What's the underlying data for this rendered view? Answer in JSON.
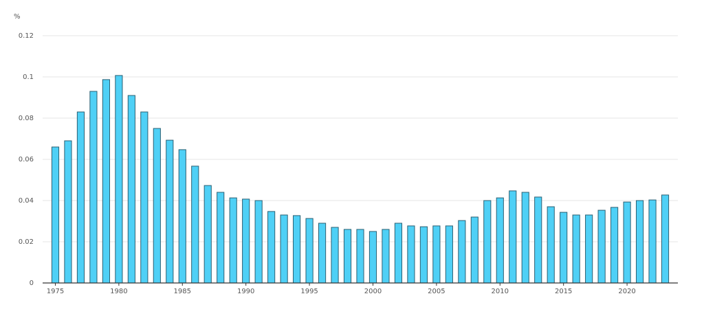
{
  "chart_data": {
    "type": "bar",
    "y_label": "%",
    "x": [
      1975,
      1976,
      1977,
      1978,
      1979,
      1980,
      1981,
      1982,
      1983,
      1984,
      1985,
      1986,
      1987,
      1988,
      1989,
      1990,
      1991,
      1992,
      1993,
      1994,
      1995,
      1996,
      1997,
      1998,
      1999,
      2000,
      2001,
      2002,
      2003,
      2004,
      2005,
      2006,
      2007,
      2008,
      2009,
      2010,
      2011,
      2012,
      2013,
      2014,
      2015,
      2016,
      2017,
      2018,
      2019,
      2020,
      2021,
      2022,
      2023
    ],
    "values": [
      0.066,
      0.069,
      0.083,
      0.093,
      0.0987,
      0.1007,
      0.091,
      0.083,
      0.075,
      0.0693,
      0.0647,
      0.0567,
      0.0473,
      0.044,
      0.0413,
      0.0407,
      0.04,
      0.0347,
      0.033,
      0.0327,
      0.0313,
      0.029,
      0.027,
      0.026,
      0.026,
      0.025,
      0.026,
      0.029,
      0.0277,
      0.0273,
      0.0277,
      0.0277,
      0.0303,
      0.032,
      0.04,
      0.0413,
      0.0447,
      0.044,
      0.0417,
      0.037,
      0.0343,
      0.033,
      0.033,
      0.0353,
      0.0367,
      0.0393,
      0.04,
      0.0403,
      0.0427
    ],
    "color": "#4fd0f6",
    "xlim": [
      1974,
      2024
    ],
    "xticks": [
      1975,
      1980,
      1985,
      1990,
      1995,
      2000,
      2005,
      2010,
      2015,
      2020
    ],
    "ylim": [
      0,
      0.12
    ],
    "yticks": [
      0,
      0.02,
      0.04,
      0.06,
      0.08,
      0.1,
      0.12
    ],
    "grid": true
  }
}
